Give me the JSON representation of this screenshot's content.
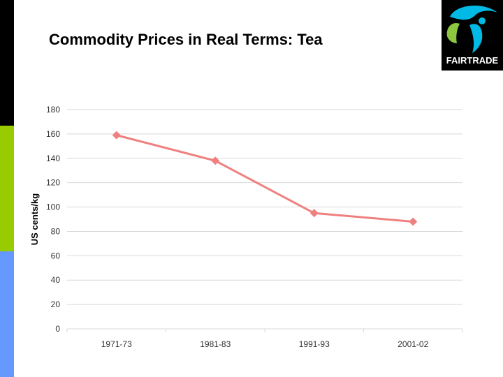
{
  "slide": {
    "title": "Commodity Prices in Real Terms: Tea",
    "logo_text": "FAIRTRADE",
    "colors": {
      "sidebar_top": "#000000",
      "sidebar_middle": "#99cc00",
      "sidebar_bottom": "#6699ff",
      "series_line": "#ef8080",
      "gridline": "#d9d9d9"
    }
  },
  "chart_data": {
    "type": "line",
    "title": "",
    "xlabel": "",
    "ylabel": "US cents/kg",
    "categories": [
      "1971-73",
      "1981-83",
      "1991-93",
      "2001-02"
    ],
    "series": [
      {
        "values": [
          159,
          138,
          95,
          88
        ]
      }
    ],
    "ylim": [
      0,
      180
    ],
    "yticks": [
      0,
      20,
      40,
      60,
      80,
      100,
      120,
      140,
      160,
      180
    ],
    "grid": true,
    "legend": "none",
    "marker": "diamond"
  }
}
